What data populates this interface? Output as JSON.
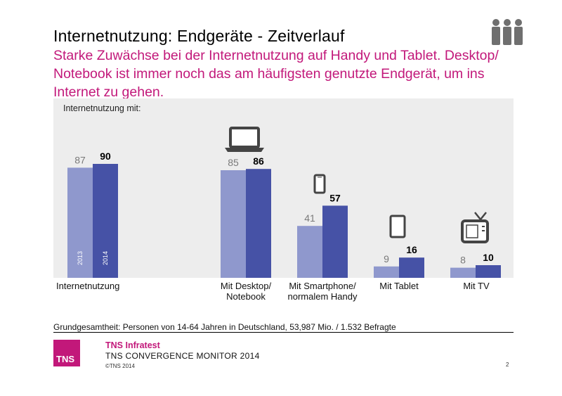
{
  "header": {
    "title": "Internetnutzung: Endgeräte - Zeitverlauf",
    "subtitle": "Starke Zuwächse bei der Internetnutzung auf Handy und Tablet. Desktop/ Notebook ist immer noch das am häufigsten genutzte Endgerät, um ins Internet zu gehen."
  },
  "colors": {
    "accent": "#c2187a",
    "bar_2013": "#8f98cd",
    "bar_2014": "#4652a6",
    "panel_bg": "#ededed"
  },
  "icons": [
    "people-icon",
    "laptop-icon",
    "smartphone-icon",
    "tablet-icon",
    "tv-icon"
  ],
  "chart_data": {
    "type": "bar",
    "panel_label": "Internetnutzung mit:",
    "categories": [
      "Internetnutzung",
      "Mit Desktop/ Notebook",
      "Mit Smartphone/ normalem Handy",
      "Mit Tablet",
      "Mit TV"
    ],
    "series": [
      {
        "name": "2013",
        "values": [
          87,
          85,
          41,
          9,
          8
        ]
      },
      {
        "name": "2014",
        "values": [
          90,
          86,
          57,
          16,
          10
        ]
      }
    ],
    "ylim": [
      0,
      100
    ],
    "grid": false,
    "legend": "series names printed inside first bars"
  },
  "footer": {
    "note": "Grundgesamtheit: Personen von 14-64 Jahren in Deutschland, 53,987 Mio. / 1.532 Befragte",
    "logo": "TNS",
    "brand": "TNS Infratest",
    "monitor": "TNS CONVERGENCE MONITOR 2014",
    "copyright": "©TNS 2014",
    "page": "2"
  }
}
